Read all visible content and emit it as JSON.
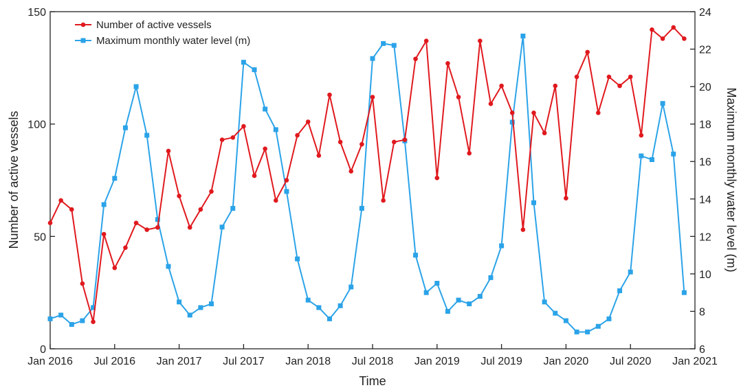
{
  "chart_data": {
    "type": "line",
    "xlabel": "Time",
    "ylabel_left": "Number of active vessels",
    "ylabel_right": "Maximum monthly water level (m)",
    "ylim_left": [
      0,
      150
    ],
    "yticks_left": [
      "0",
      "50",
      "100",
      "150"
    ],
    "ylim_right": [
      6,
      24
    ],
    "yticks_right": [
      "6",
      "8",
      "10",
      "12",
      "14",
      "16",
      "18",
      "20",
      "22",
      "24"
    ],
    "x_tick_labels": [
      "Jan 2016",
      "Jul 2016",
      "Jan 2017",
      "Jul 2017",
      "Jan 2018",
      "Jul 2018",
      "Jan 2019",
      "Jul 2019",
      "Jan 2020",
      "Jul 2020",
      "Jan 2021"
    ],
    "x_months": [
      "2016-01",
      "2016-02",
      "2016-03",
      "2016-04",
      "2016-05",
      "2016-06",
      "2016-07",
      "2016-08",
      "2016-09",
      "2016-10",
      "2016-11",
      "2016-12",
      "2017-01",
      "2017-02",
      "2017-03",
      "2017-04",
      "2017-05",
      "2017-06",
      "2017-07",
      "2017-08",
      "2017-09",
      "2017-10",
      "2017-11",
      "2017-12",
      "2018-01",
      "2018-02",
      "2018-03",
      "2018-04",
      "2018-05",
      "2018-06",
      "2018-07",
      "2018-08",
      "2018-09",
      "2018-10",
      "2018-11",
      "2018-12",
      "2019-01",
      "2019-02",
      "2019-03",
      "2019-04",
      "2019-05",
      "2019-06",
      "2019-07",
      "2019-08",
      "2019-09",
      "2019-10",
      "2019-11",
      "2019-12",
      "2020-01",
      "2020-02",
      "2020-03",
      "2020-04",
      "2020-05",
      "2020-06",
      "2020-07",
      "2020-08",
      "2020-09",
      "2020-10",
      "2020-11",
      "2020-12"
    ],
    "legend_placement": "top-left",
    "grid": false,
    "series": [
      {
        "name": "Number of active vessels",
        "axis": "left",
        "color": "#e0191e",
        "marker": "circle",
        "values": [
          56,
          66,
          62,
          29,
          12,
          51,
          36,
          45,
          56,
          53,
          54,
          88,
          68,
          54,
          62,
          70,
          93,
          94,
          99,
          77,
          89,
          66,
          75,
          95,
          101,
          86,
          113,
          92,
          79,
          91,
          112,
          66,
          92,
          93,
          129,
          137,
          76,
          127,
          112,
          87,
          137,
          109,
          117,
          105,
          53,
          105,
          96,
          117,
          67,
          121,
          132,
          105,
          121,
          117,
          121,
          95,
          142,
          138,
          143,
          138
        ]
      },
      {
        "name": "Maximum monthly water level (m)",
        "axis": "right",
        "color": "#2ba3e8",
        "marker": "square",
        "values": [
          7.6,
          7.8,
          7.3,
          7.5,
          8.2,
          13.7,
          15.1,
          17.8,
          20.0,
          17.4,
          12.9,
          10.4,
          8.5,
          7.8,
          8.2,
          8.4,
          12.5,
          13.5,
          21.3,
          20.9,
          18.8,
          17.7,
          14.4,
          10.8,
          8.6,
          8.2,
          7.6,
          8.3,
          9.3,
          13.5,
          21.5,
          22.3,
          22.2,
          17.1,
          11.0,
          9.0,
          9.5,
          8.0,
          8.6,
          8.4,
          8.8,
          9.8,
          11.5,
          18.1,
          22.7,
          13.8,
          8.5,
          7.9,
          7.5,
          6.9,
          6.9,
          7.2,
          7.6,
          9.1,
          10.1,
          16.3,
          16.1,
          19.1,
          16.4,
          9.0
        ]
      }
    ]
  }
}
